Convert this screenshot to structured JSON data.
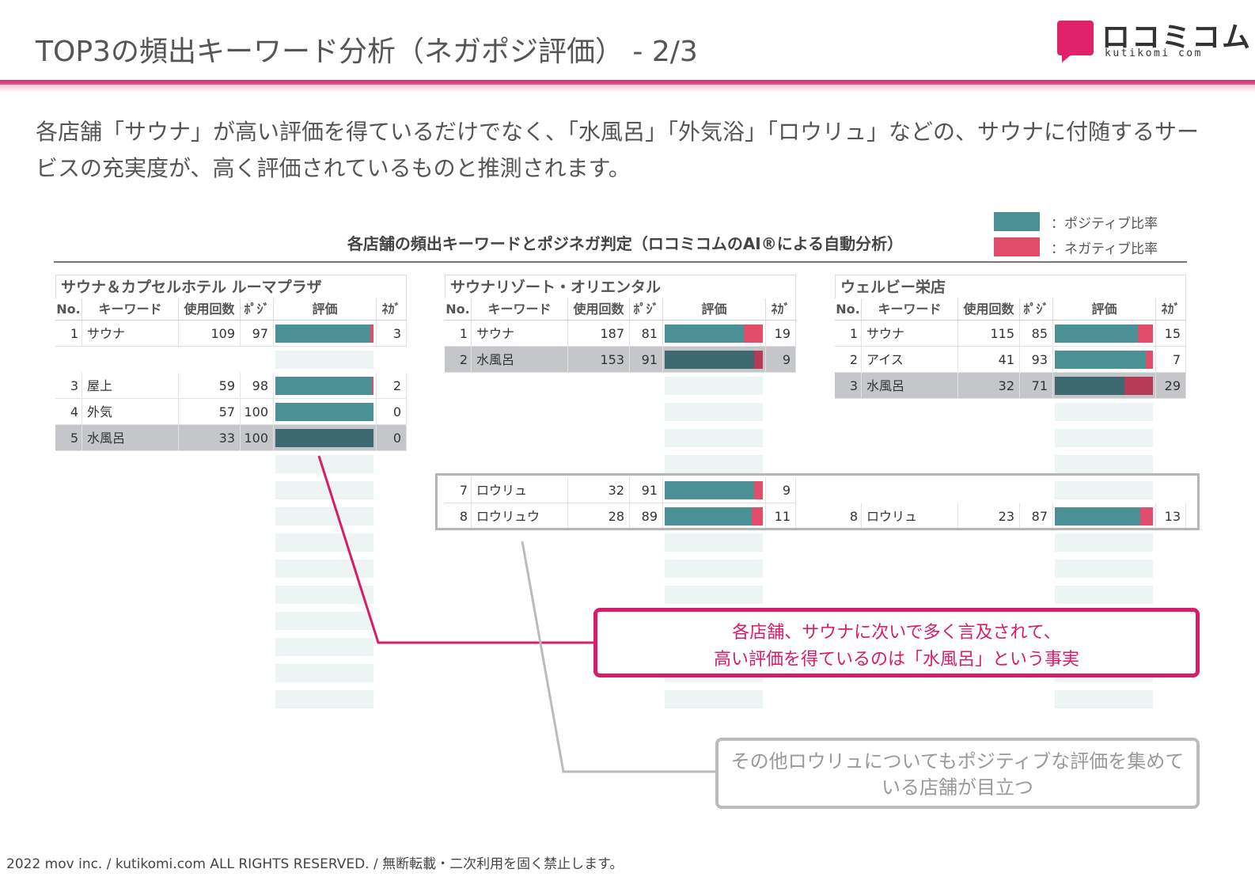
{
  "header": {
    "title": "TOP3の頻出キーワード分析（ネガポジ評価） - 2/3",
    "logo_jp": "ロコミコム",
    "logo_en": "kutikomi com"
  },
  "lead_text": "各店舗「サウナ」が高い評価を得ているだけでなく、「水風呂」「外気浴」「ロウリュ」などの、サウナに付随するサービスの充実度が、高く評価されているものと推測されます。",
  "legend": {
    "positive": "：ポジティブ比率",
    "negative": "：ネガティブ比率"
  },
  "colors": {
    "positive": "#4b9095",
    "negative": "#e24d6c",
    "accent": "#d91c6a"
  },
  "chart_title": "各店舗の頻出キーワードとポジネガ判定（ロコミコムのAI®による自動分析）",
  "columns": {
    "no": "No.",
    "keyword": "キーワード",
    "count": "使用回数",
    "pos": "ﾎﾟｼﾞ",
    "rating": "評価",
    "neg": "ﾈｶﾞ"
  },
  "chart_data": {
    "type": "table",
    "stores": [
      {
        "name": "サウナ＆カプセルホテル ルーマプラザ",
        "rows": [
          {
            "no": "1",
            "keyword": "サウナ",
            "count": "109",
            "pos": "97",
            "neg": "3",
            "pos_ratio": 97,
            "highlight": false
          },
          {
            "no": "3",
            "keyword": "屋上",
            "count": "59",
            "pos": "98",
            "neg": "2",
            "pos_ratio": 98,
            "highlight": false
          },
          {
            "no": "4",
            "keyword": "外気",
            "count": "57",
            "pos": "100",
            "neg": "0",
            "pos_ratio": 100,
            "highlight": false
          },
          {
            "no": "5",
            "keyword": "水風呂",
            "count": "33",
            "pos": "100",
            "neg": "0",
            "pos_ratio": 100,
            "highlight": true
          }
        ]
      },
      {
        "name": "サウナリゾート・オリエンタル",
        "rows": [
          {
            "no": "1",
            "keyword": "サウナ",
            "count": "187",
            "pos": "81",
            "neg": "19",
            "pos_ratio": 81,
            "highlight": false
          },
          {
            "no": "2",
            "keyword": "水風呂",
            "count": "153",
            "pos": "91",
            "neg": "9",
            "pos_ratio": 91,
            "highlight": true
          },
          {
            "no": "7",
            "keyword": "ロウリュ",
            "count": "32",
            "pos": "91",
            "neg": "9",
            "pos_ratio": 91,
            "highlight": false
          },
          {
            "no": "8",
            "keyword": "ロウリュウ",
            "count": "28",
            "pos": "89",
            "neg": "11",
            "pos_ratio": 89,
            "highlight": false
          }
        ]
      },
      {
        "name": "ウェルビー栄店",
        "rows": [
          {
            "no": "1",
            "keyword": "サウナ",
            "count": "115",
            "pos": "85",
            "neg": "15",
            "pos_ratio": 85,
            "highlight": false
          },
          {
            "no": "2",
            "keyword": "アイス",
            "count": "41",
            "pos": "93",
            "neg": "7",
            "pos_ratio": 93,
            "highlight": false
          },
          {
            "no": "3",
            "keyword": "水風呂",
            "count": "32",
            "pos": "71",
            "neg": "29",
            "pos_ratio": 71,
            "highlight": true
          },
          {
            "no": "8",
            "keyword": "ロウリュ",
            "count": "23",
            "pos": "87",
            "neg": "13",
            "pos_ratio": 87,
            "highlight": false
          }
        ]
      }
    ]
  },
  "callouts": {
    "main_line1": "各店舗、サウナに次いで多く言及されて、",
    "main_line2": "高い評価を得ているのは「水風呂」という事実",
    "sub_line1": "その他ロウリュについてもポジティブな評価を集めて",
    "sub_line2": "いる店舗が目立つ"
  },
  "footer": "2022 mov inc. / kutikomi.com ALL RIGHTS RESERVED. / 無断転載・二次利用を固く禁止します。"
}
